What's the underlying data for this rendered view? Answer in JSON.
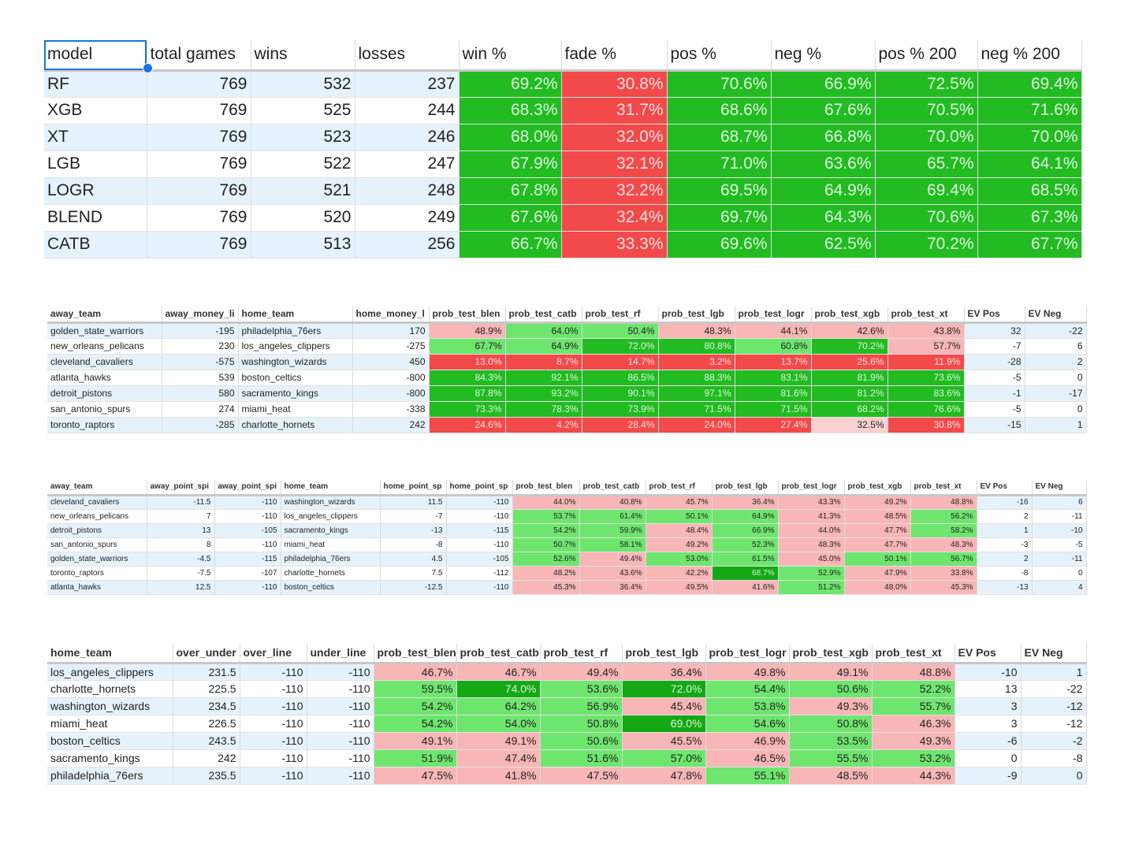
{
  "summary": {
    "headers": [
      "model",
      "total games",
      "wins",
      "losses",
      "win %",
      "fade %",
      "pos %",
      "neg %",
      "pos % 200",
      "neg % 200"
    ],
    "rows": [
      [
        "RF",
        "769",
        "532",
        "237",
        "69.2%",
        "30.8%",
        "70.6%",
        "66.9%",
        "72.5%",
        "69.4%"
      ],
      [
        "XGB",
        "769",
        "525",
        "244",
        "68.3%",
        "31.7%",
        "68.6%",
        "67.6%",
        "70.5%",
        "71.6%"
      ],
      [
        "XT",
        "769",
        "523",
        "246",
        "68.0%",
        "32.0%",
        "68.7%",
        "66.8%",
        "70.0%",
        "70.0%"
      ],
      [
        "LGB",
        "769",
        "522",
        "247",
        "67.9%",
        "32.1%",
        "71.0%",
        "63.6%",
        "65.7%",
        "64.1%"
      ],
      [
        "LOGR",
        "769",
        "521",
        "248",
        "67.8%",
        "32.2%",
        "69.5%",
        "64.9%",
        "69.4%",
        "68.5%"
      ],
      [
        "BLEND",
        "769",
        "520",
        "249",
        "67.6%",
        "32.4%",
        "69.7%",
        "64.3%",
        "70.6%",
        "67.3%"
      ],
      [
        "CATB",
        "769",
        "513",
        "256",
        "66.7%",
        "33.3%",
        "69.6%",
        "62.5%",
        "70.2%",
        "67.7%"
      ]
    ]
  },
  "moneyline": {
    "headers": [
      "away_team",
      "away_money_li",
      "home_team",
      "home_money_l",
      "prob_test_blen",
      "prob_test_catb",
      "prob_test_rf",
      "prob_test_lgb",
      "prob_test_logr",
      "prob_test_xgb",
      "prob_test_xt",
      "EV Pos",
      "EV Neg"
    ],
    "rows": [
      [
        "golden_state_warriors",
        "-195",
        "philadelphia_76ers",
        "170",
        "48.9%",
        "64.0%",
        "50.4%",
        "48.3%",
        "44.1%",
        "42.6%",
        "43.8%",
        "32",
        "-22"
      ],
      [
        "new_orleans_pelicans",
        "230",
        "los_angeles_clippers",
        "-275",
        "67.7%",
        "64.9%",
        "72.0%",
        "80.8%",
        "60.8%",
        "70.2%",
        "57.7%",
        "-7",
        "6"
      ],
      [
        "cleveland_cavaliers",
        "-575",
        "washington_wizards",
        "450",
        "13.0%",
        "8.7%",
        "14.7%",
        "3.2%",
        "13.7%",
        "25.6%",
        "11.9%",
        "-28",
        "2"
      ],
      [
        "atlanta_hawks",
        "539",
        "boston_celtics",
        "-800",
        "84.3%",
        "92.1%",
        "86.5%",
        "88.3%",
        "83.1%",
        "81.9%",
        "73.6%",
        "-5",
        "0"
      ],
      [
        "detroit_pistons",
        "580",
        "sacramento_kings",
        "-800",
        "87.8%",
        "93.2%",
        "90.1%",
        "97.1%",
        "81.6%",
        "81.2%",
        "83.6%",
        "-1",
        "-17"
      ],
      [
        "san_antonio_spurs",
        "274",
        "miami_heat",
        "-338",
        "73.3%",
        "78.3%",
        "73.9%",
        "71.5%",
        "71.5%",
        "68.2%",
        "76.6%",
        "-5",
        "0"
      ],
      [
        "toronto_raptors",
        "-285",
        "charlotte_hornets",
        "242",
        "24.6%",
        "4.2%",
        "28.4%",
        "24.0%",
        "27.4%",
        "32.5%",
        "30.8%",
        "-15",
        "1"
      ]
    ]
  },
  "spread": {
    "headers": [
      "away_team",
      "away_point_spi",
      "away_point_spi",
      "home_team",
      "home_point_sp",
      "home_point_sp",
      "prob_test_blen",
      "prob_test_catb",
      "prob_test_rf",
      "prob_test_lgb",
      "prob_test_logr",
      "prob_test_xgb",
      "prob_test_xt",
      "EV Pos",
      "EV Neg"
    ],
    "rows": [
      [
        "cleveland_cavaliers",
        "-11.5",
        "-110",
        "washington_wizards",
        "11.5",
        "-110",
        "44.0%",
        "40.8%",
        "45.7%",
        "36.4%",
        "43.3%",
        "49.2%",
        "48.8%",
        "-16",
        "6"
      ],
      [
        "new_orleans_pelicans",
        "7",
        "-110",
        "los_angeles_clippers",
        "-7",
        "-110",
        "53.7%",
        "61.4%",
        "50.1%",
        "64.9%",
        "41.3%",
        "48.5%",
        "56.2%",
        "2",
        "-11"
      ],
      [
        "detroit_pistons",
        "13",
        "-105",
        "sacramento_kings",
        "-13",
        "-115",
        "54.2%",
        "59.9%",
        "48.4%",
        "66.9%",
        "44.0%",
        "47.7%",
        "58.2%",
        "1",
        "-10"
      ],
      [
        "san_antonio_spurs",
        "8",
        "-110",
        "miami_heat",
        "-8",
        "-110",
        "50.7%",
        "58.1%",
        "49.2%",
        "52.3%",
        "48.3%",
        "47.7%",
        "48.3%",
        "-3",
        "-5"
      ],
      [
        "golden_state_warriors",
        "-4.5",
        "-115",
        "philadelphia_76ers",
        "4.5",
        "-105",
        "52.6%",
        "49.4%",
        "53.0%",
        "61.5%",
        "45.0%",
        "50.1%",
        "56.7%",
        "2",
        "-11"
      ],
      [
        "toronto_raptors",
        "-7.5",
        "-107",
        "charlotte_hornets",
        "7.5",
        "-112",
        "48.2%",
        "43.6%",
        "42.2%",
        "68.7%",
        "52.9%",
        "47.9%",
        "33.8%",
        "-8",
        "0"
      ],
      [
        "atlanta_hawks",
        "12.5",
        "-110",
        "boston_celtics",
        "-12.5",
        "-110",
        "45.3%",
        "36.4%",
        "49.5%",
        "41.6%",
        "51.2%",
        "48.0%",
        "45.3%",
        "-13",
        "4"
      ]
    ]
  },
  "totals": {
    "headers": [
      "home_team",
      "over_under",
      "over_line",
      "under_line",
      "prob_test_blen",
      "prob_test_catb",
      "prob_test_rf",
      "prob_test_lgb",
      "prob_test_logr",
      "prob_test_xgb",
      "prob_test_xt",
      "EV Pos",
      "EV Neg"
    ],
    "rows": [
      [
        "los_angeles_clippers",
        "231.5",
        "-110",
        "-110",
        "46.7%",
        "46.7%",
        "49.4%",
        "36.4%",
        "49.8%",
        "49.1%",
        "48.8%",
        "-10",
        "1"
      ],
      [
        "charlotte_hornets",
        "225.5",
        "-110",
        "-110",
        "59.5%",
        "74.0%",
        "53.6%",
        "72.0%",
        "54.4%",
        "50.6%",
        "52.2%",
        "13",
        "-22"
      ],
      [
        "washington_wizards",
        "234.5",
        "-110",
        "-110",
        "54.2%",
        "64.2%",
        "56.9%",
        "45.4%",
        "53.8%",
        "49.3%",
        "55.7%",
        "3",
        "-12"
      ],
      [
        "miami_heat",
        "226.5",
        "-110",
        "-110",
        "54.2%",
        "54.0%",
        "50.8%",
        "69.0%",
        "54.6%",
        "50.8%",
        "46.3%",
        "3",
        "-12"
      ],
      [
        "boston_celtics",
        "243.5",
        "-110",
        "-110",
        "49.1%",
        "49.1%",
        "50.6%",
        "45.5%",
        "46.9%",
        "53.5%",
        "49.3%",
        "-6",
        "-2"
      ],
      [
        "sacramento_kings",
        "242",
        "-110",
        "-110",
        "51.9%",
        "47.4%",
        "51.6%",
        "57.0%",
        "46.5%",
        "55.5%",
        "53.2%",
        "0",
        "-8"
      ],
      [
        "philadelphia_76ers",
        "235.5",
        "-110",
        "-110",
        "47.5%",
        "41.8%",
        "47.5%",
        "47.8%",
        "55.1%",
        "48.5%",
        "44.3%",
        "-9",
        "0"
      ]
    ]
  },
  "colors": {
    "strong_green": "#22bb22",
    "strong_red": "#f24a4a",
    "light_green": "#6ee66e",
    "light_red": "#f8b6b6",
    "selection_blue": "#1a73e8",
    "alt_row_blue": "#e6f2fb"
  }
}
